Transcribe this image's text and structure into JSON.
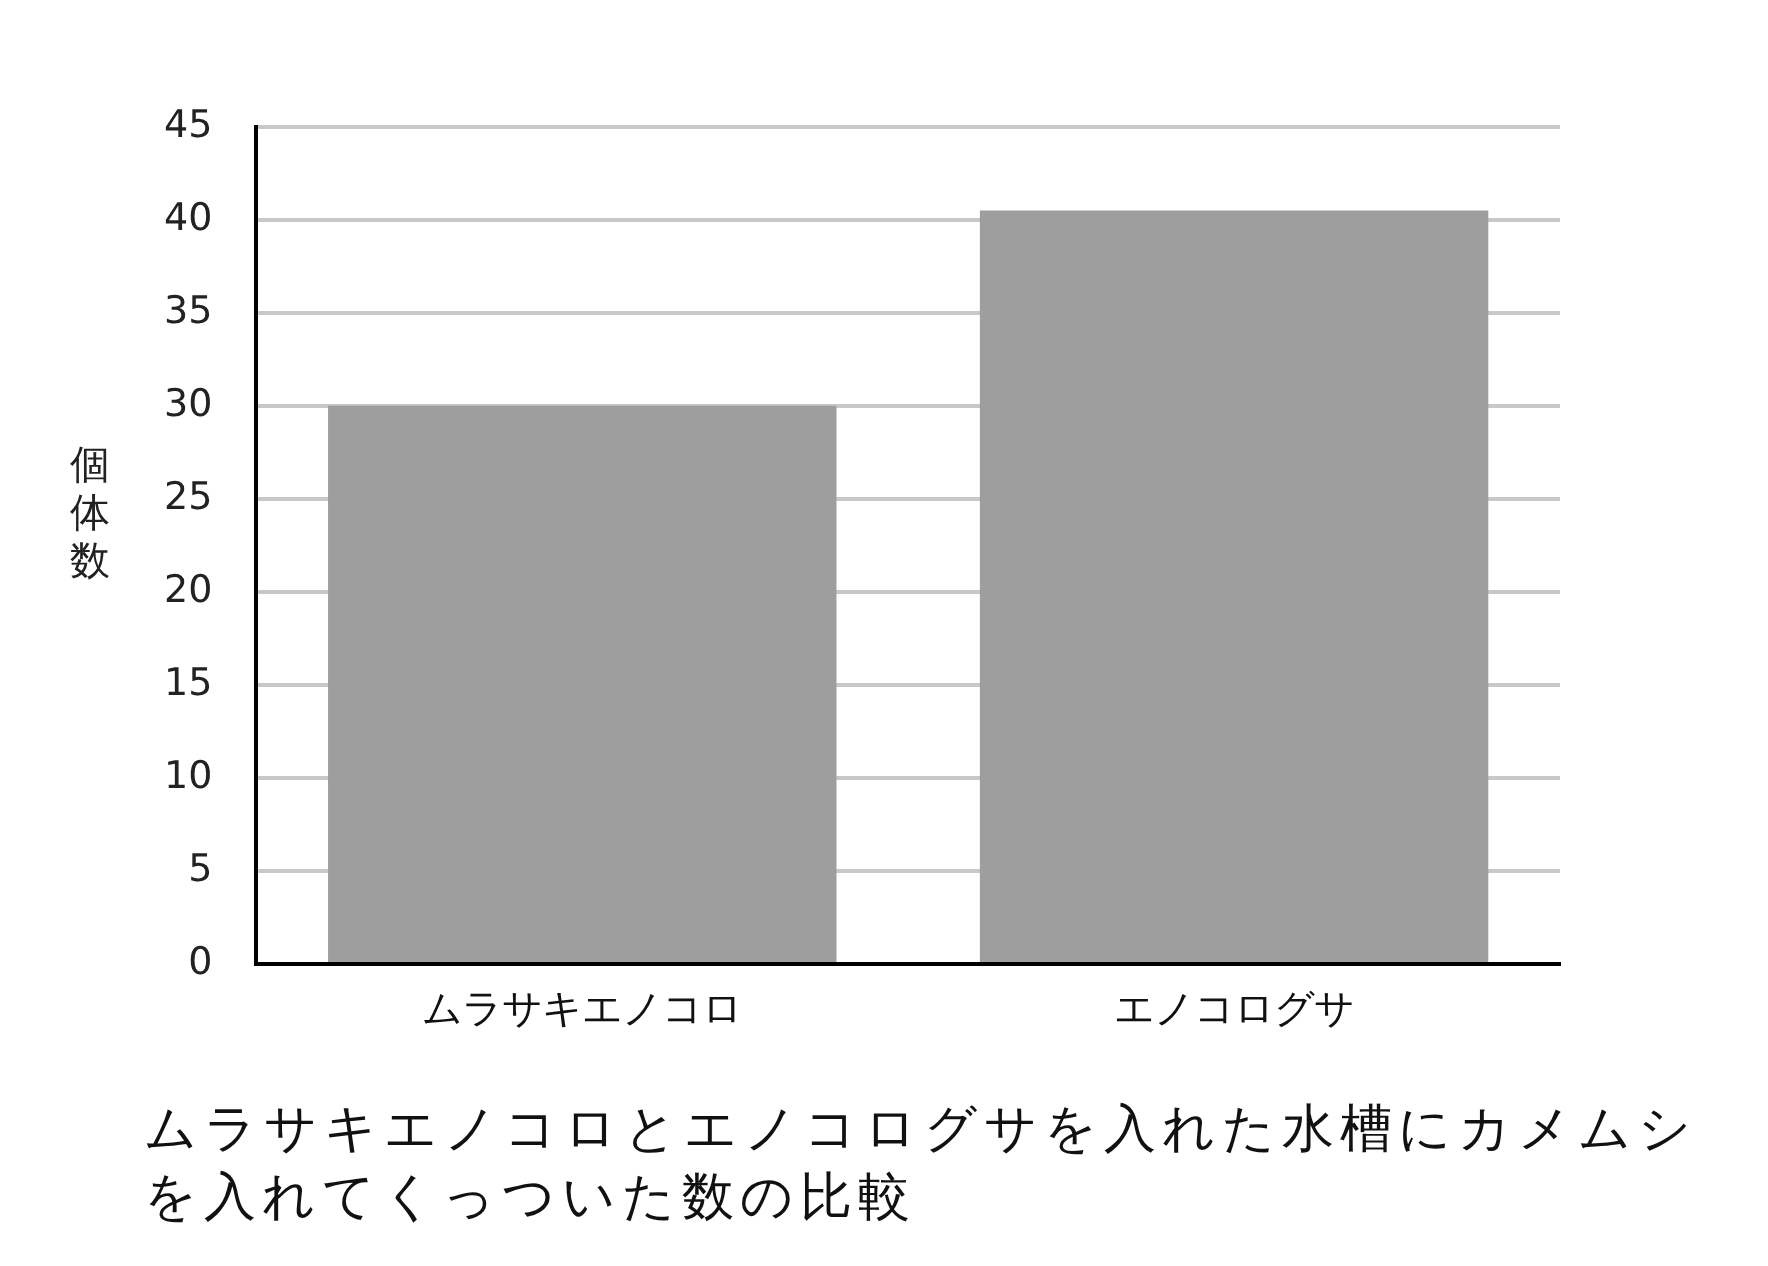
{
  "chart_data": {
    "type": "bar",
    "categories": [
      "ムラサキエノコロ",
      "エノコログサ"
    ],
    "values": [
      30,
      40.5
    ],
    "color": "#9d9e9d",
    "ylabel": "個体数",
    "ylim": [
      0,
      45
    ],
    "yticks": [
      0,
      5,
      10,
      15,
      20,
      25,
      30,
      35,
      40,
      45
    ],
    "grid": "y",
    "annotations": [
      "ムラサキエノコロとエノコログサを入れた水槽にカメムシを入れてくっついた数の比較"
    ]
  }
}
